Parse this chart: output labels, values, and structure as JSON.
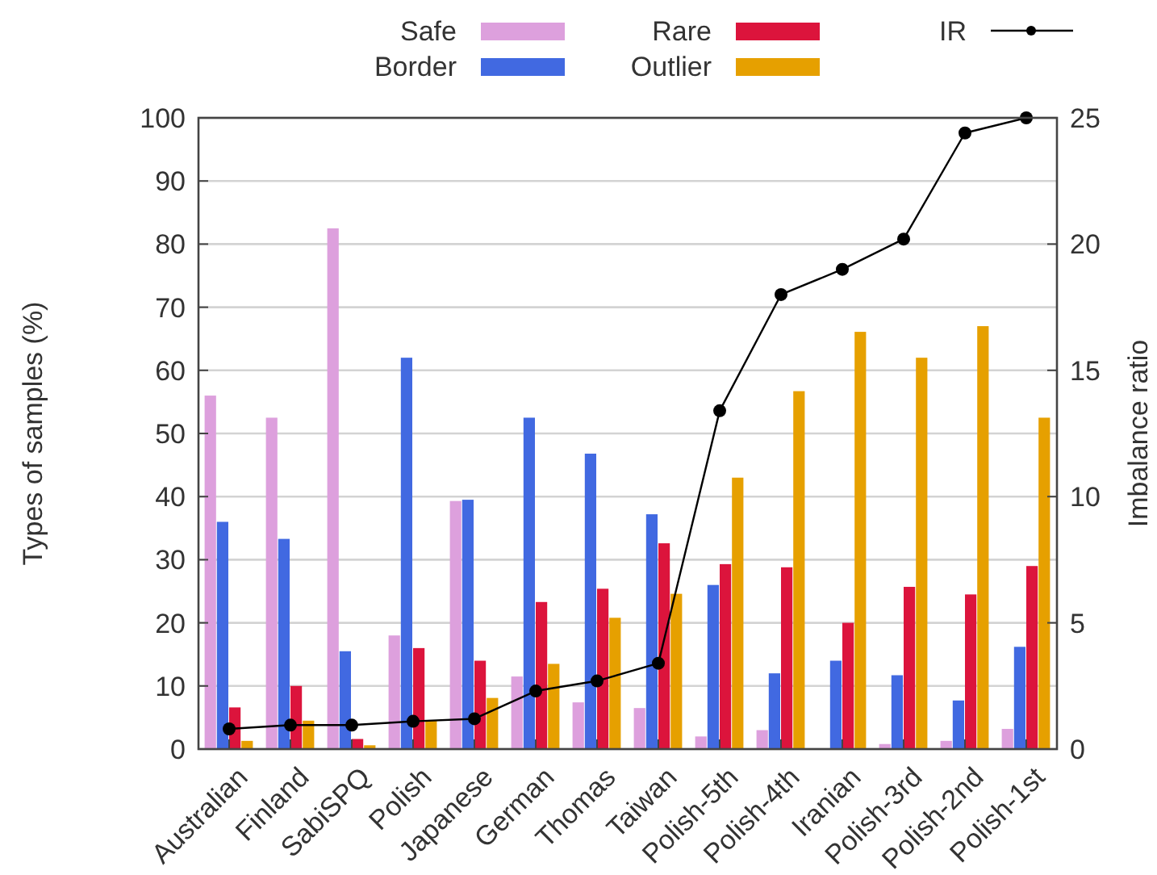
{
  "chart_data": {
    "type": "bar",
    "categories": [
      "Australian",
      "Finland",
      "SabiSPQ",
      "Polish",
      "Japanese",
      "German",
      "Thomas",
      "Taiwan",
      "Polish-5th",
      "Polish-4th",
      "Iranian",
      "Polish-3rd",
      "Polish-2nd",
      "Polish-1st"
    ],
    "series": [
      {
        "name": "Safe",
        "color": "#dda0dd",
        "values": [
          56,
          52.5,
          82.5,
          18,
          39.3,
          11.5,
          7.4,
          6.5,
          2,
          3,
          0,
          0.8,
          1.3,
          3.2
        ]
      },
      {
        "name": "Border",
        "color": "#4169e1",
        "values": [
          36,
          33.3,
          15.5,
          62,
          39.5,
          52.5,
          46.8,
          37.2,
          26,
          12,
          14,
          11.7,
          7.7,
          16.2
        ]
      },
      {
        "name": "Rare",
        "color": "#dc143c",
        "values": [
          6.6,
          10,
          1.6,
          16,
          14,
          23.3,
          25.4,
          32.6,
          29.3,
          28.8,
          20,
          25.7,
          24.5,
          29
        ]
      },
      {
        "name": "Outlier",
        "color": "#e6a000",
        "values": [
          1.3,
          4.5,
          0.6,
          4.5,
          8.1,
          13.5,
          20.8,
          24.6,
          43,
          56.7,
          66.1,
          62,
          67,
          52.5
        ]
      },
      {
        "name": "IR",
        "type": "line",
        "axis": "y2",
        "color": "#000000",
        "marker": "circle",
        "values": [
          0.8,
          0.95,
          0.95,
          1.1,
          1.2,
          2.3,
          2.7,
          3.4,
          13.4,
          18,
          19,
          20.2,
          24.4,
          25
        ]
      }
    ],
    "ylabel": "Types of samples (%)",
    "y2label": "Imbalance ratio",
    "ylim": [
      0,
      100
    ],
    "yticks": [
      0,
      10,
      20,
      30,
      40,
      50,
      60,
      70,
      80,
      90,
      100
    ],
    "y2lim": [
      0,
      25
    ],
    "y2ticks": [
      0,
      5,
      10,
      15,
      20,
      25
    ],
    "grid": "y",
    "legend": "top"
  }
}
